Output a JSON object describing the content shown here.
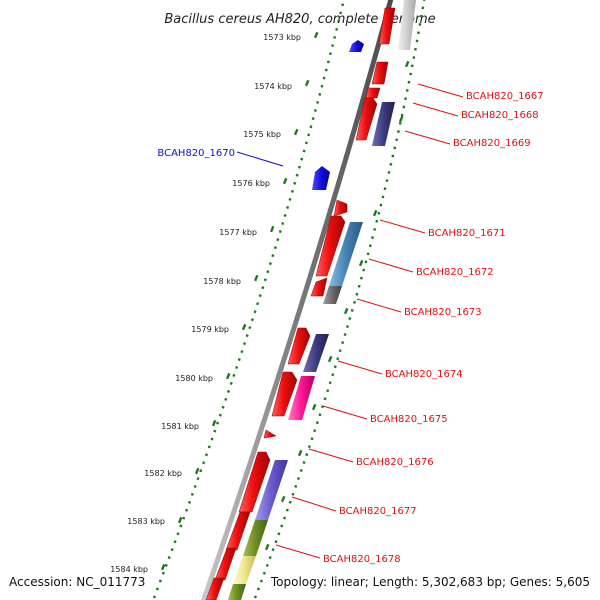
{
  "title": "Bacillus cereus AH820, complete genome",
  "accession": "Accession: NC_011773",
  "summary": "Topology: linear; Length: 5,302,683 bp; Genes: 5,605",
  "ticks": [
    {
      "label": "1573 kbp"
    },
    {
      "label": "1574 kbp"
    },
    {
      "label": "1575 kbp"
    },
    {
      "label": "1576 kbp"
    },
    {
      "label": "1577 kbp"
    },
    {
      "label": "1578 kbp"
    },
    {
      "label": "1579 kbp"
    },
    {
      "label": "1580 kbp"
    },
    {
      "label": "1581 kbp"
    },
    {
      "label": "1582 kbp"
    },
    {
      "label": "1583 kbp"
    },
    {
      "label": "1584 kbp"
    }
  ],
  "genes": [
    {
      "label": "BCAH820_1667",
      "color": "#e01010"
    },
    {
      "label": "BCAH820_1668",
      "color": "#e01010"
    },
    {
      "label": "BCAH820_1669",
      "color": "#e01010"
    },
    {
      "label": "BCAH820_1670",
      "color": "#1010cc"
    },
    {
      "label": "BCAH820_1671",
      "color": "#e01010"
    },
    {
      "label": "BCAH820_1672",
      "color": "#e01010"
    },
    {
      "label": "BCAH820_1673",
      "color": "#e01010"
    },
    {
      "label": "BCAH820_1674",
      "color": "#e01010"
    },
    {
      "label": "BCAH820_1675",
      "color": "#e01010"
    },
    {
      "label": "BCAH820_1676",
      "color": "#e01010"
    },
    {
      "label": "BCAH820_1677",
      "color": "#e01010"
    },
    {
      "label": "BCAH820_1678",
      "color": "#e01010"
    }
  ],
  "colors": {
    "forward_gene": "#e01010",
    "reverse_gene": "#1010cc",
    "backbone": "#888888",
    "tick": "#1a7a1a"
  }
}
